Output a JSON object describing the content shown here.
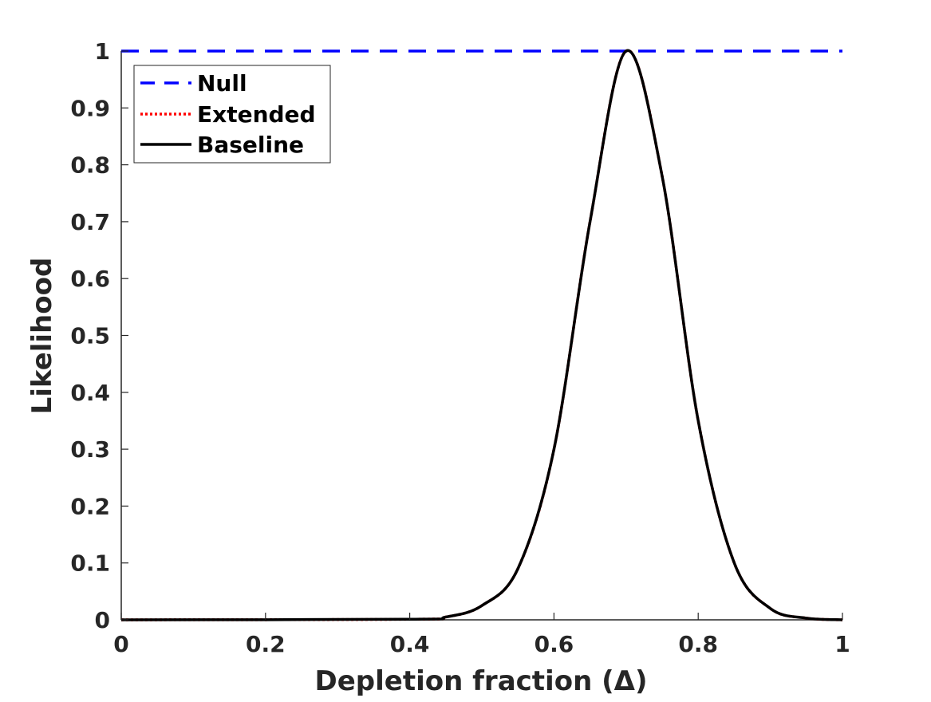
{
  "chart_data": {
    "type": "line",
    "title": "",
    "xlabel": "Depletion fraction (Δ)",
    "ylabel": "Likelihood",
    "xlim": [
      0,
      1
    ],
    "ylim": [
      0,
      1
    ],
    "xticks": [
      0,
      0.2,
      0.4,
      0.6,
      0.8,
      1
    ],
    "xtick_labels": [
      "0",
      "0.2",
      "0.4",
      "0.6",
      "0.8",
      "1"
    ],
    "yticks": [
      0,
      0.1,
      0.2,
      0.3,
      0.4,
      0.5,
      0.6,
      0.7,
      0.8,
      0.9,
      1
    ],
    "ytick_labels": [
      "0",
      "0.1",
      "0.2",
      "0.3",
      "0.4",
      "0.5",
      "0.6",
      "0.7",
      "0.8",
      "0.9",
      "1"
    ],
    "grid": false,
    "legend_position": "top-left",
    "series": [
      {
        "name": "Null",
        "color": "#0000ff",
        "style": "dashed",
        "x": [
          0,
          1
        ],
        "y": [
          1,
          1
        ]
      },
      {
        "name": "Extended",
        "color": "#ff0000",
        "style": "dotted",
        "x": [
          0,
          0.4,
          0.45,
          0.5,
          0.55,
          0.6,
          0.65,
          0.7,
          0.75,
          0.8,
          0.85,
          0.9,
          0.95,
          1
        ],
        "y": [
          0,
          0.001,
          0.005,
          0.025,
          0.09,
          0.3,
          0.7,
          1,
          0.78,
          0.35,
          0.1,
          0.02,
          0.003,
          0
        ]
      },
      {
        "name": "Baseline",
        "color": "#000000",
        "style": "solid",
        "x": [
          0,
          0.4,
          0.45,
          0.5,
          0.55,
          0.6,
          0.65,
          0.7,
          0.75,
          0.8,
          0.85,
          0.9,
          0.95,
          1
        ],
        "y": [
          0,
          0.001,
          0.005,
          0.025,
          0.09,
          0.3,
          0.7,
          1,
          0.78,
          0.35,
          0.1,
          0.02,
          0.003,
          0
        ]
      }
    ]
  }
}
